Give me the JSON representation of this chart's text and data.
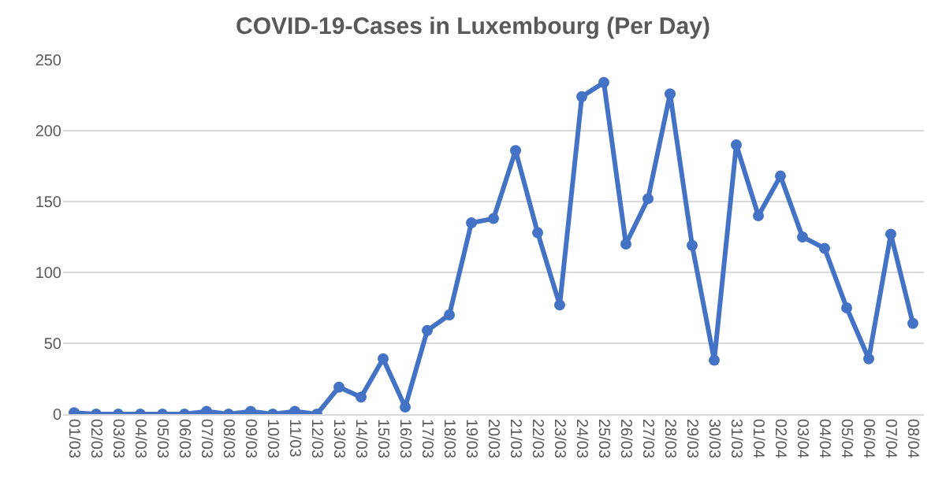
{
  "chart_data": {
    "type": "line",
    "title": "COVID-19-Cases in Luxembourg (Per Day)",
    "categories": [
      "01/03",
      "02/03",
      "03/03",
      "04/03",
      "05/03",
      "06/03",
      "07/03",
      "08/03",
      "09/03",
      "10/03",
      "11/03",
      "12/03",
      "13/03",
      "14/03",
      "15/03",
      "16/03",
      "17/03",
      "18/03",
      "19/03",
      "20/03",
      "21/03",
      "22/03",
      "23/03",
      "24/03",
      "25/03",
      "26/03",
      "27/03",
      "28/03",
      "29/03",
      "30/03",
      "31/03",
      "01/04",
      "02/04",
      "03/04",
      "04/04",
      "05/04",
      "06/04",
      "07/04",
      "08/04"
    ],
    "series": [
      {
        "color": "#4472c4",
        "values": [
          1,
          0,
          0,
          0,
          0,
          0,
          2,
          0,
          2,
          0,
          2,
          0,
          19,
          12,
          39,
          5,
          59,
          70,
          135,
          138,
          186,
          128,
          77,
          224,
          234,
          120,
          152,
          226,
          119,
          38,
          190,
          140,
          168,
          125,
          117,
          75,
          39,
          127,
          64
        ]
      }
    ],
    "ylim": [
      0,
      250
    ],
    "yticks": [
      0,
      50,
      100,
      150,
      200,
      250
    ],
    "grid": "y",
    "marker": "circle",
    "line_style": "solid"
  }
}
